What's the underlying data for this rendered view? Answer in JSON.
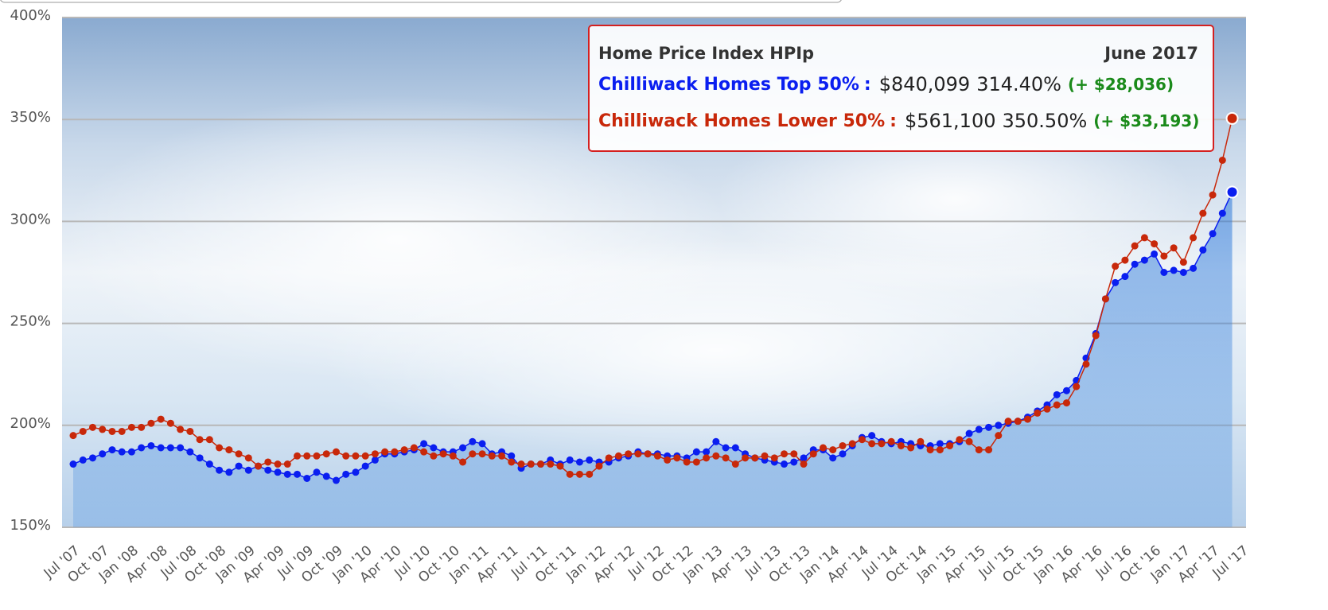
{
  "chart_data": {
    "type": "line",
    "categories": [
      "Jul '07",
      null,
      null,
      "Oct '07",
      null,
      null,
      "Jan '08",
      null,
      null,
      "Apr '08",
      null,
      null,
      "Jul '08",
      null,
      null,
      "Oct '08",
      null,
      null,
      "Jan '09",
      null,
      null,
      "Apr '09",
      null,
      null,
      "Jul '09",
      null,
      null,
      "Oct '09",
      null,
      null,
      "Jan '10",
      null,
      null,
      "Apr '10",
      null,
      null,
      "Jul '10",
      null,
      null,
      "Oct '10",
      null,
      null,
      "Jan '11",
      null,
      null,
      "Apr '11",
      null,
      null,
      "Jul '11",
      null,
      null,
      "Oct '11",
      null,
      null,
      "Jan '12",
      null,
      null,
      "Apr '12",
      null,
      null,
      "Jul '12",
      null,
      null,
      "Oct '12",
      null,
      null,
      "Jan '13",
      null,
      null,
      "Apr '13",
      null,
      null,
      "Jul '13",
      null,
      null,
      "Oct '13",
      null,
      null,
      "Jan '14",
      null,
      null,
      "Apr '14",
      null,
      null,
      "Jul '14",
      null,
      null,
      "Oct '14",
      null,
      null,
      "Jan '15",
      null,
      null,
      "Apr '15",
      null,
      null,
      "Jul '15",
      null,
      null,
      "Oct '15",
      null,
      null,
      "Jan '16",
      null,
      null,
      "Apr '16",
      null,
      null,
      "Jul '16",
      null,
      null,
      "Oct '16",
      null,
      null,
      "Jan '17",
      null,
      null,
      "Apr '17",
      null,
      null,
      "Jul '17"
    ],
    "series": [
      {
        "name": "Chilliwack Homes Top 50%",
        "color": "#0a1ef0",
        "area": true,
        "values": [
          181,
          183,
          184,
          186,
          188,
          187,
          187,
          189,
          190,
          189,
          189,
          189,
          187,
          184,
          181,
          178,
          177,
          180,
          178,
          180,
          178,
          177,
          176,
          176,
          174,
          177,
          175,
          173,
          176,
          177,
          180,
          183,
          186,
          186,
          187,
          188,
          191,
          189,
          187,
          187,
          189,
          192,
          191,
          186,
          187,
          185,
          179,
          181,
          181,
          183,
          181,
          183,
          182,
          183,
          182,
          182,
          184,
          185,
          187,
          186,
          186,
          185,
          185,
          184,
          187,
          187,
          192,
          189,
          189,
          186,
          184,
          183,
          182,
          181,
          182,
          184,
          188,
          188,
          184,
          186,
          190,
          194,
          195,
          192,
          191,
          192,
          191,
          190,
          190,
          191,
          191,
          192,
          196,
          198,
          199,
          200,
          201,
          202,
          204,
          207,
          210,
          215,
          217,
          222,
          233,
          245,
          262,
          270,
          273,
          279,
          281,
          284,
          275,
          276,
          275,
          277,
          286,
          294,
          304,
          314.4,
          null
        ]
      },
      {
        "name": "Chilliwack Homes Lower 50%",
        "color": "#c8280a",
        "area": false,
        "values": [
          195,
          197,
          199,
          198,
          197,
          197,
          199,
          199,
          201,
          203,
          201,
          198,
          197,
          193,
          193,
          189,
          188,
          186,
          184,
          180,
          182,
          181,
          181,
          185,
          185,
          185,
          186,
          187,
          185,
          185,
          185,
          186,
          187,
          187,
          188,
          189,
          187,
          185,
          186,
          185,
          182,
          186,
          186,
          185,
          185,
          182,
          181,
          181,
          181,
          181,
          180,
          176,
          176,
          176,
          180,
          184,
          185,
          186,
          186,
          186,
          185,
          183,
          184,
          182,
          182,
          184,
          185,
          184,
          181,
          184,
          184,
          185,
          184,
          186,
          186,
          181,
          186,
          189,
          188,
          190,
          191,
          193,
          191,
          191,
          192,
          190,
          189,
          192,
          188,
          188,
          190,
          193,
          192,
          188,
          188,
          195,
          202,
          202,
          203,
          206,
          208,
          210,
          211,
          219,
          230,
          244,
          262,
          278,
          281,
          288,
          292,
          289,
          283,
          287,
          280,
          292,
          304,
          313,
          330,
          350.5,
          null
        ]
      }
    ],
    "ylim": [
      150,
      400
    ],
    "yticks": [
      {
        "value": 150,
        "label": "150%"
      },
      {
        "value": 200,
        "label": "200%"
      },
      {
        "value": 250,
        "label": "250%"
      },
      {
        "value": 300,
        "label": "300%"
      },
      {
        "value": 350,
        "label": "350%"
      },
      {
        "value": 400,
        "label": "400%"
      }
    ],
    "grid": true,
    "tooltip": {
      "title": "Home Price Index HPIp",
      "date": "June 2017",
      "separator": ":",
      "rows": [
        {
          "price": "$840,099",
          "index": "314.40%",
          "change": "(+ $28,036)"
        },
        {
          "price": "$561,100",
          "index": "350.50%",
          "change": "(+ $33,193)"
        }
      ]
    }
  }
}
